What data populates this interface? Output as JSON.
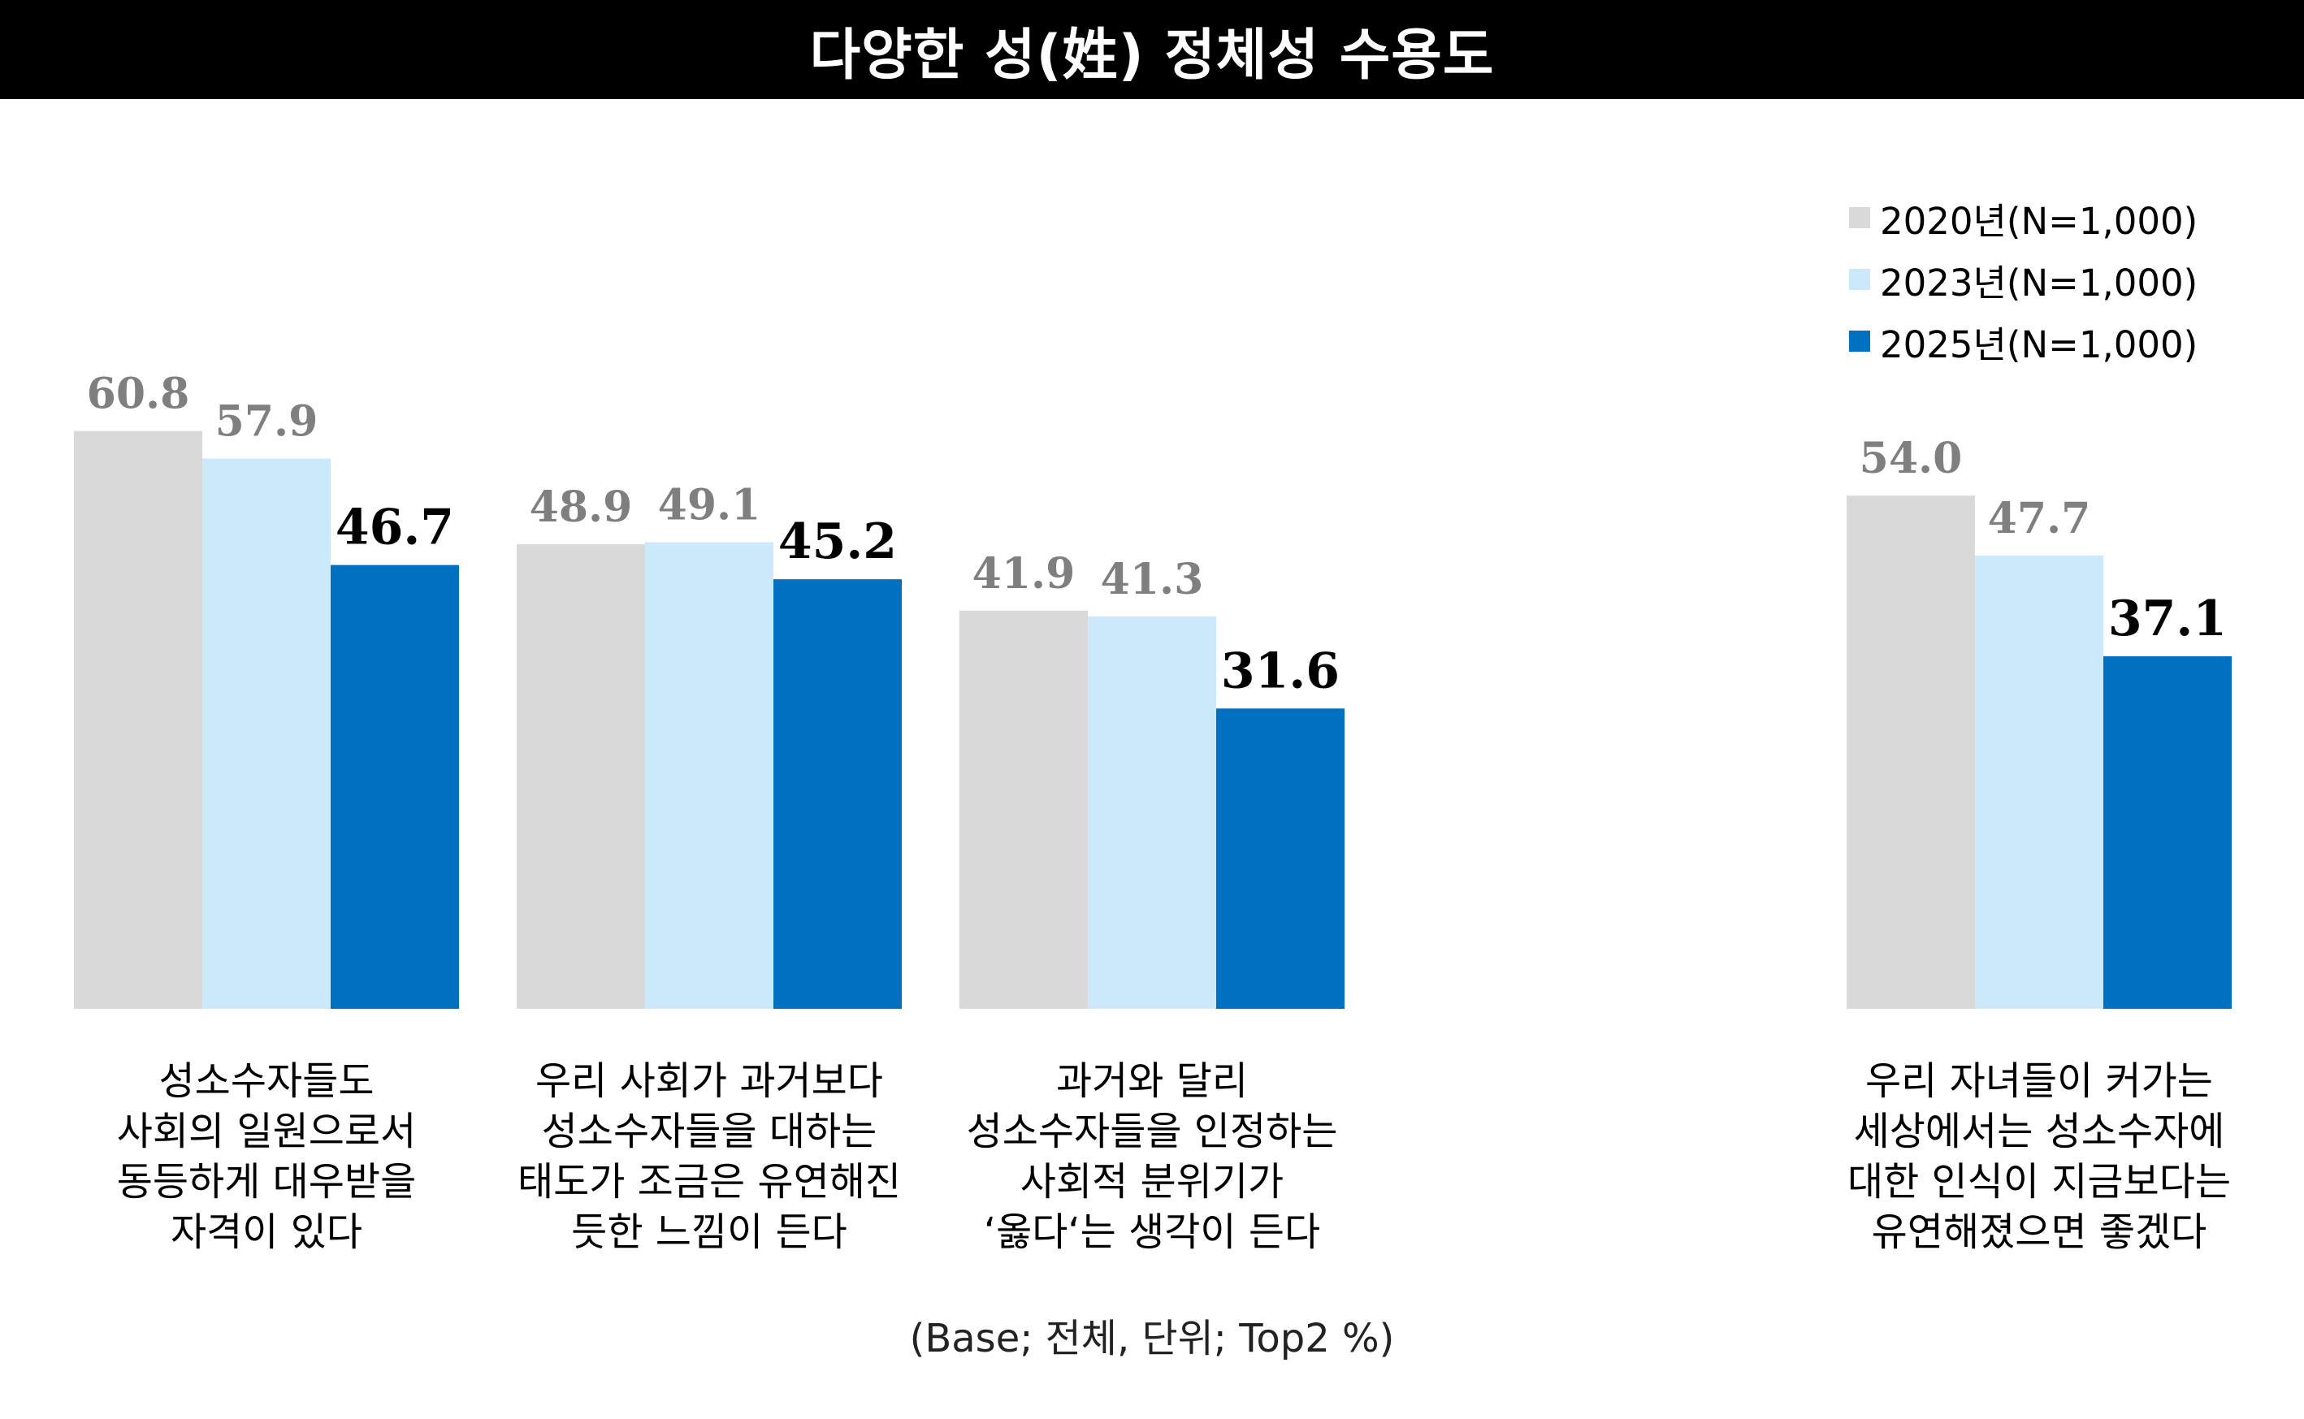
{
  "title": "다양한 성(姓) 정체성 수용도",
  "note": "(Base; 전체, 단위; Top2 %)",
  "colors": {
    "s2020": "#D9D9D9",
    "s2023": "#CCE9FC",
    "s2025": "#0070C0",
    "label_muted": "#7F7F7F",
    "label_strong": "#000000"
  },
  "chart_data": {
    "type": "bar",
    "title": "다양한 성(姓) 정체성 수용도",
    "xlabel": "",
    "ylabel": "",
    "grid": false,
    "legend_position": "top-right",
    "categories": [
      "성소수자들도\n사회의 일원으로서\n동등하게 대우받을\n자격이 있다",
      "우리 사회가 과거보다\n성소수자들을 대하는\n태도가 조금은 유연해진\n듯한 느낌이 든다",
      "과거와 달리\n성소수자들을 인정하는\n사회적 분위기가\n‘옳다‘는 생각이 든다",
      "우리 자녀들이 커가는\n세상에서는 성소수자에\n대한 인식이 지금보다는\n유연해졌으면 좋겠다"
    ],
    "series": [
      {
        "name": "2020년(N=1,000)",
        "values": [
          60.8,
          48.9,
          41.9,
          54.0
        ],
        "labels": [
          "60.8",
          "48.9",
          "41.9",
          "54.0"
        ]
      },
      {
        "name": "2023년(N=1,000)",
        "values": [
          57.9,
          49.1,
          41.3,
          47.7
        ],
        "labels": [
          "57.9",
          "49.1",
          "41.3",
          "47.7"
        ]
      },
      {
        "name": "2025년(N=1,000)",
        "values": [
          46.7,
          45.2,
          31.6,
          37.1
        ],
        "labels": [
          "46.7",
          "45.2",
          "31.6",
          "37.1"
        ]
      }
    ]
  }
}
